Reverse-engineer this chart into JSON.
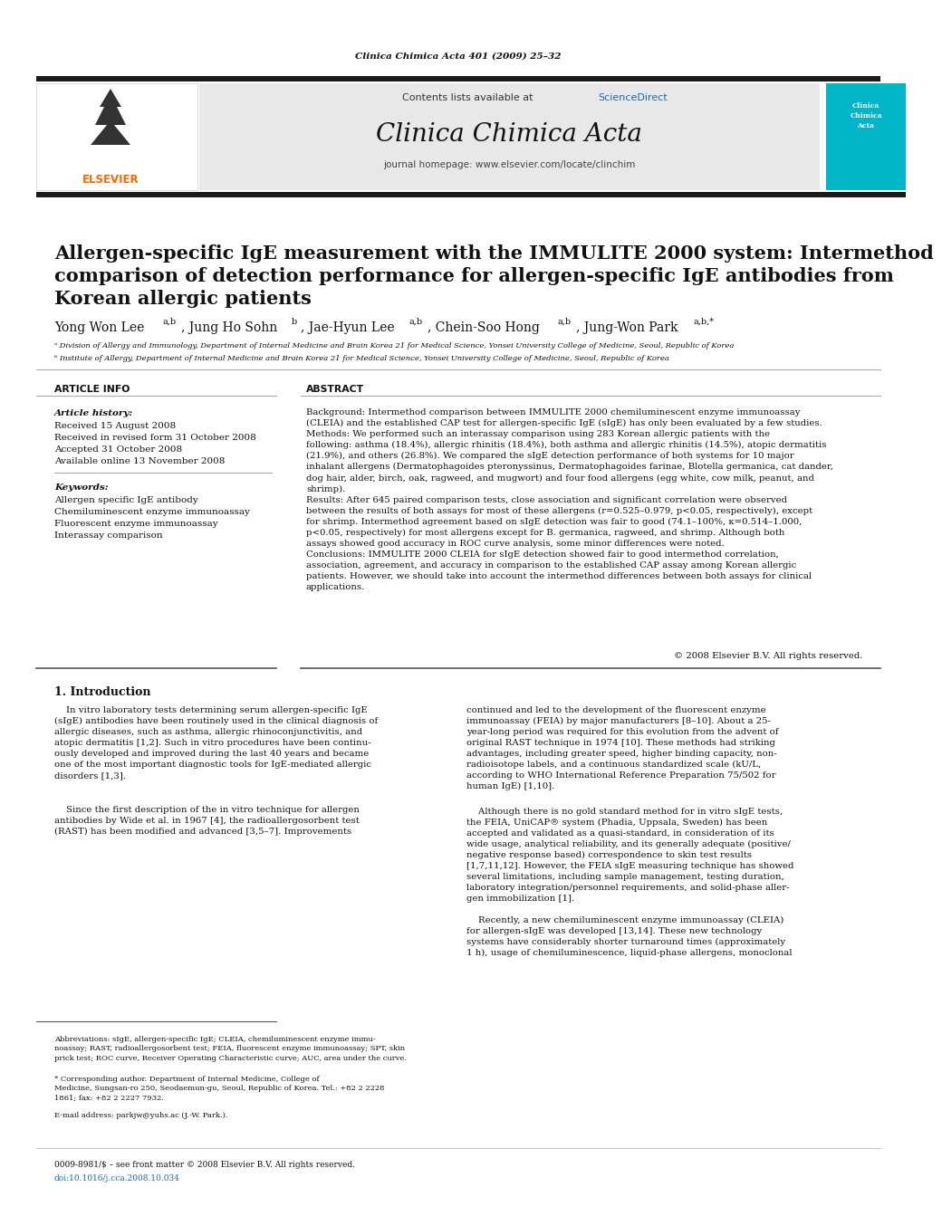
{
  "journal_cite": "Clinica Chimica Acta 401 (2009) 25–32",
  "journal_name": "Clinica Chimica Acta",
  "journal_homepage": "journal homepage: www.elsevier.com/locate/clinchim",
  "contents_line": "Contents lists available at ScienceDirect",
  "title_line1": "Allergen-specific IgE measurement with the IMMULITE 2000 system: Intermethod",
  "title_line2": "comparison of detection performance for allergen-specific IgE antibodies from",
  "title_line3": "Korean allergic patients",
  "article_info_header": "ARTICLE INFO",
  "abstract_header": "ABSTRACT",
  "article_history_label": "Article history:",
  "received": "Received 15 August 2008",
  "received_revised": "Received in revised form 31 October 2008",
  "accepted": "Accepted 31 October 2008",
  "available": "Available online 13 November 2008",
  "keywords_label": "Keywords:",
  "keywords": [
    "Allergen specific IgE antibody",
    "Chemiluminescent enzyme immunoassay",
    "Fluorescent enzyme immunoassay",
    "Interassay comparison"
  ],
  "copyright": "© 2008 Elsevier B.V. All rights reserved.",
  "intro_header": "1. Introduction",
  "footer_issn": "0009-8981/$ – see front matter © 2008 Elsevier B.V. All rights reserved.",
  "footer_doi": "doi:10.1016/j.cca.2008.10.034",
  "bg_color": "#ffffff",
  "elsevier_orange": "#FF6600",
  "sciencedirect_blue": "#1a6aab",
  "dark_bar": "#1a1a1a",
  "teal_bg": "#00b5c8"
}
